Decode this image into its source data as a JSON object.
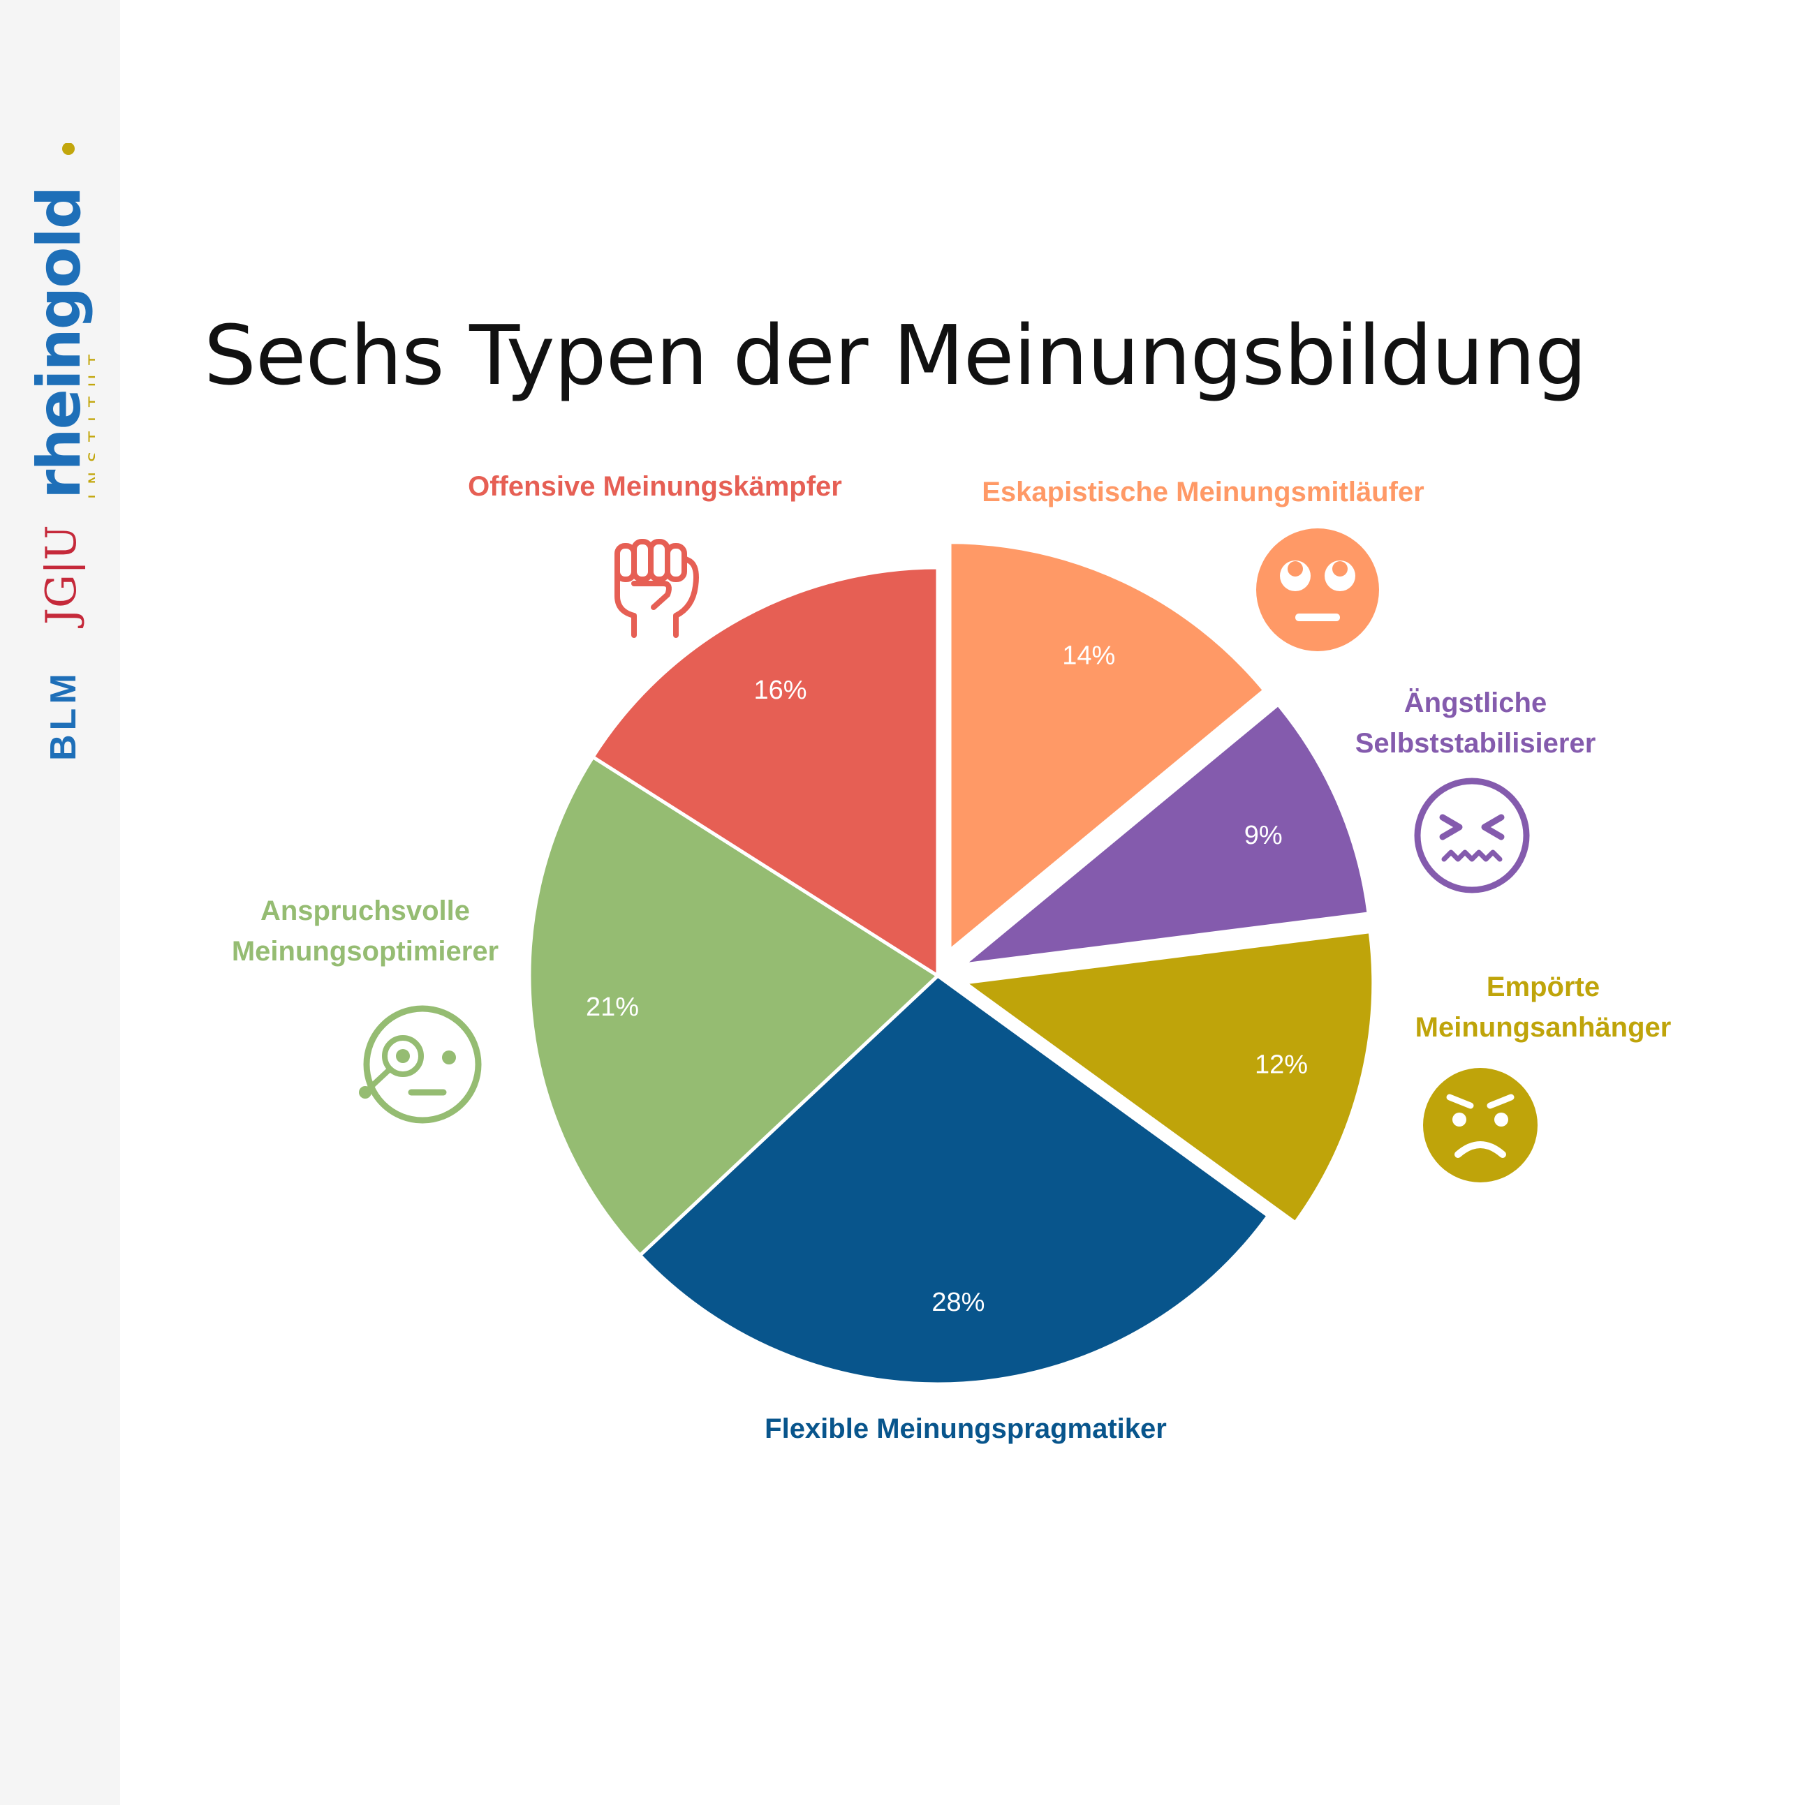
{
  "title": "Sechs Typen der Meinungsbildung",
  "logos": {
    "blm": "BLM",
    "jgu": "JG|U",
    "rheingold": "rheingold",
    "institut": "INSTITUT"
  },
  "chart_data": {
    "type": "pie",
    "title": "Sechs Typen der Meinungsbildung",
    "start_angle_deg": 0,
    "direction": "clockwise",
    "slices": [
      {
        "label": "Eskapistische Meinungsmitläufer",
        "value": 14,
        "display": "14%",
        "color": "#FF9966",
        "exploded": true,
        "icon": "rolling-eyes-face-icon"
      },
      {
        "label": "Ängstliche Selbststabilisierer",
        "value": 9,
        "display": "9%",
        "color": "#845BAD",
        "exploded": true,
        "icon": "anxious-face-icon"
      },
      {
        "label": "Empörte Meinungsanhänger",
        "value": 12,
        "display": "12%",
        "color": "#BFA40A",
        "exploded": true,
        "icon": "angry-face-icon"
      },
      {
        "label": "Flexible Meinungspragmatiker",
        "value": 28,
        "display": "28%",
        "color": "#08558C",
        "exploded": false,
        "icon": ""
      },
      {
        "label": "Anspruchsvolle Meinungsoptimierer",
        "value": 21,
        "display": "21%",
        "color": "#95BC72",
        "exploded": false,
        "icon": "monocle-face-icon"
      },
      {
        "label": "Offensive Meinungskämpfer",
        "value": 16,
        "display": "16%",
        "color": "#E65F54",
        "exploded": false,
        "icon": "raised-fist-icon"
      }
    ],
    "label_lines": [
      [
        "Eskapistische Meinungsmitläufer"
      ],
      [
        "Ängstliche",
        "Selbststabilisierer"
      ],
      [
        "Empörte",
        "Meinungsanhänger"
      ],
      [
        "Flexible Meinungspragmatiker"
      ],
      [
        "Anspruchsvolle",
        "Meinungsoptimierer"
      ],
      [
        "Offensive Meinungskämpfer"
      ]
    ],
    "colors": {
      "logo_blue": "#1E6FB8",
      "logo_red": "#C5293A",
      "logo_gold": "#C2A60C"
    }
  }
}
